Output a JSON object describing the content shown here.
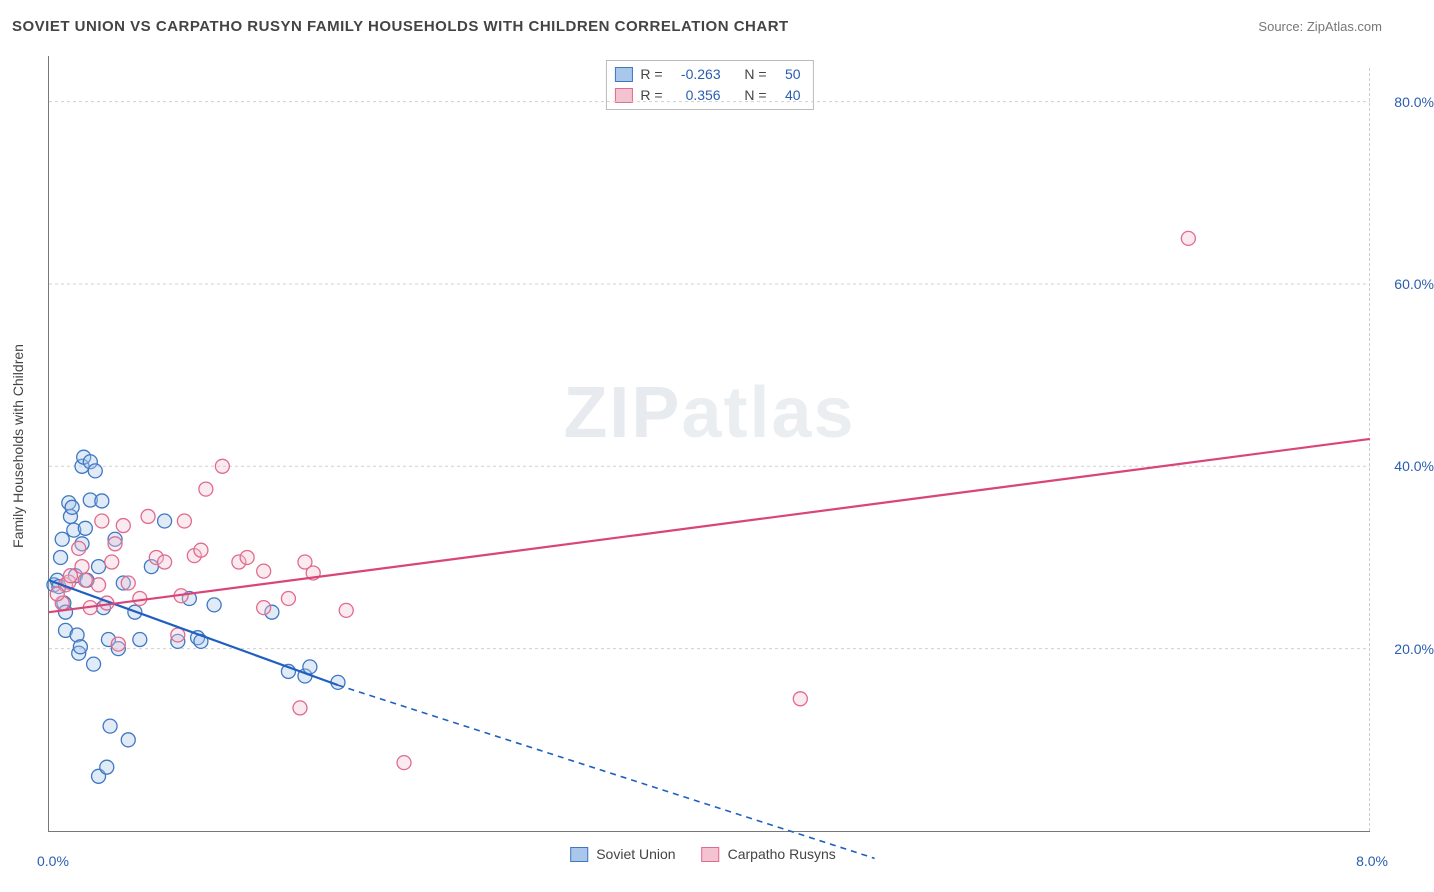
{
  "title": "SOVIET UNION VS CARPATHO RUSYN FAMILY HOUSEHOLDS WITH CHILDREN CORRELATION CHART",
  "source_label": "Source:",
  "source_value": "ZipAtlas.com",
  "watermark_zip": "ZIP",
  "watermark_atlas": "atlas",
  "y_axis_label": "Family Households with Children",
  "chart": {
    "type": "scatter",
    "x_domain": [
      0.0,
      8.0
    ],
    "y_domain": [
      0.0,
      85.0
    ],
    "y_gridlines": [
      20.0,
      40.0,
      60.0,
      80.0
    ],
    "y_tick_labels": [
      "20.0%",
      "40.0%",
      "60.0%",
      "80.0%"
    ],
    "x_min_label": "0.0%",
    "x_max_label": "8.0%",
    "background_color": "#ffffff",
    "grid_color": "#d0d0d0",
    "marker_radius": 7,
    "series": [
      {
        "key": "soviet",
        "name": "Soviet Union",
        "fill": "#a9c7ea",
        "stroke": "#3e78c3",
        "R": "-0.263",
        "N": "50",
        "trend": {
          "x1": 0.0,
          "y1": 27.5,
          "x2": 1.75,
          "y2": 16.0,
          "color": "#1f5fbf",
          "dash_to_x": 5.0,
          "dash_to_y": -3.0
        },
        "points": [
          [
            0.03,
            27.0
          ],
          [
            0.05,
            27.5
          ],
          [
            0.06,
            26.8
          ],
          [
            0.07,
            30.0
          ],
          [
            0.08,
            32.0
          ],
          [
            0.09,
            25.0
          ],
          [
            0.1,
            24.0
          ],
          [
            0.1,
            22.0
          ],
          [
            0.12,
            36.0
          ],
          [
            0.13,
            34.5
          ],
          [
            0.14,
            35.5
          ],
          [
            0.15,
            33.0
          ],
          [
            0.16,
            28.0
          ],
          [
            0.17,
            21.5
          ],
          [
            0.18,
            19.5
          ],
          [
            0.19,
            20.2
          ],
          [
            0.2,
            40.0
          ],
          [
            0.2,
            31.5
          ],
          [
            0.21,
            41.0
          ],
          [
            0.22,
            33.2
          ],
          [
            0.23,
            27.5
          ],
          [
            0.25,
            36.3
          ],
          [
            0.25,
            40.5
          ],
          [
            0.27,
            18.3
          ],
          [
            0.28,
            39.5
          ],
          [
            0.3,
            6.0
          ],
          [
            0.3,
            29.0
          ],
          [
            0.32,
            36.2
          ],
          [
            0.33,
            24.5
          ],
          [
            0.35,
            7.0
          ],
          [
            0.36,
            21.0
          ],
          [
            0.37,
            11.5
          ],
          [
            0.4,
            32.0
          ],
          [
            0.42,
            20.0
          ],
          [
            0.45,
            27.2
          ],
          [
            0.48,
            10.0
          ],
          [
            0.52,
            24.0
          ],
          [
            0.55,
            21.0
          ],
          [
            0.62,
            29.0
          ],
          [
            0.7,
            34.0
          ],
          [
            0.78,
            20.8
          ],
          [
            0.85,
            25.5
          ],
          [
            0.9,
            21.2
          ],
          [
            0.92,
            20.8
          ],
          [
            1.0,
            24.8
          ],
          [
            1.35,
            24.0
          ],
          [
            1.45,
            17.5
          ],
          [
            1.55,
            17.0
          ],
          [
            1.58,
            18.0
          ],
          [
            1.75,
            16.3
          ]
        ]
      },
      {
        "key": "carpatho",
        "name": "Carpatho Rusyns",
        "fill": "#f3c3d0",
        "stroke": "#e06b8e",
        "R": "0.356",
        "N": "40",
        "trend": {
          "x1": 0.0,
          "y1": 24.0,
          "x2": 8.0,
          "y2": 43.0,
          "color": "#d9447a"
        },
        "points": [
          [
            0.08,
            25.0
          ],
          [
            0.1,
            27.0
          ],
          [
            0.12,
            27.3
          ],
          [
            0.13,
            28.0
          ],
          [
            0.18,
            31.0
          ],
          [
            0.2,
            29.0
          ],
          [
            0.22,
            27.5
          ],
          [
            0.25,
            24.5
          ],
          [
            0.3,
            27.0
          ],
          [
            0.32,
            34.0
          ],
          [
            0.35,
            25.0
          ],
          [
            0.38,
            29.5
          ],
          [
            0.4,
            31.5
          ],
          [
            0.42,
            20.5
          ],
          [
            0.45,
            33.5
          ],
          [
            0.48,
            27.2
          ],
          [
            0.55,
            25.5
          ],
          [
            0.6,
            34.5
          ],
          [
            0.65,
            30.0
          ],
          [
            0.7,
            29.5
          ],
          [
            0.78,
            21.5
          ],
          [
            0.8,
            25.8
          ],
          [
            0.82,
            34.0
          ],
          [
            0.88,
            30.2
          ],
          [
            0.92,
            30.8
          ],
          [
            0.95,
            37.5
          ],
          [
            1.05,
            40.0
          ],
          [
            1.15,
            29.5
          ],
          [
            1.2,
            30.0
          ],
          [
            1.3,
            28.5
          ],
          [
            1.3,
            24.5
          ],
          [
            1.45,
            25.5
          ],
          [
            1.52,
            13.5
          ],
          [
            1.55,
            29.5
          ],
          [
            1.6,
            28.3
          ],
          [
            1.8,
            24.2
          ],
          [
            2.15,
            7.5
          ],
          [
            4.55,
            14.5
          ],
          [
            6.9,
            65.0
          ],
          [
            0.05,
            26.0
          ]
        ]
      }
    ]
  },
  "legend_top": {
    "r_label": "R =",
    "n_label": "N ="
  }
}
